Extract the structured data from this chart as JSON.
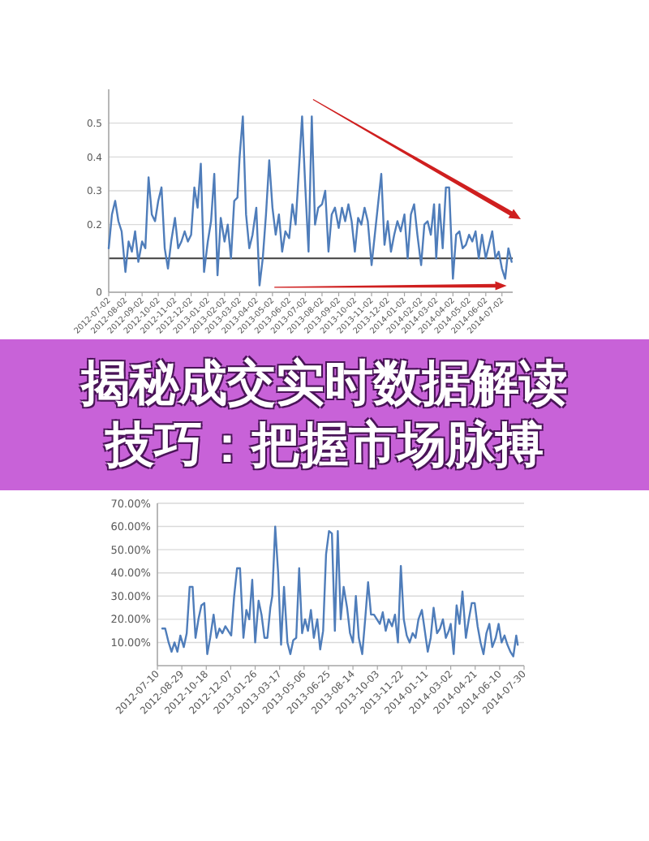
{
  "chart_data": [
    {
      "type": "line",
      "color": "#4f7dba",
      "x": [
        "2012-07-02",
        "2012-07-08",
        "2012-07-14",
        "2012-07-20",
        "2012-07-26",
        "2012-08-02",
        "2012-08-08",
        "2012-08-14",
        "2012-08-20",
        "2012-08-26",
        "2012-09-02",
        "2012-09-08",
        "2012-09-14",
        "2012-09-20",
        "2012-09-26",
        "2012-10-02",
        "2012-10-08",
        "2012-10-14",
        "2012-10-20",
        "2012-10-26",
        "2012-11-02",
        "2012-11-08",
        "2012-11-14",
        "2012-11-20",
        "2012-11-26",
        "2012-12-02",
        "2012-12-08",
        "2012-12-14",
        "2012-12-20",
        "2012-12-26",
        "2013-01-02",
        "2013-01-08",
        "2013-01-14",
        "2013-01-20",
        "2013-01-26",
        "2013-02-02",
        "2013-02-08",
        "2013-02-14",
        "2013-02-20",
        "2013-02-26",
        "2013-03-02",
        "2013-03-08",
        "2013-03-14",
        "2013-03-20",
        "2013-03-26",
        "2013-04-02",
        "2013-04-08",
        "2013-04-14",
        "2013-04-20",
        "2013-04-26",
        "2013-05-02",
        "2013-05-08",
        "2013-05-14",
        "2013-05-20",
        "2013-05-26",
        "2013-06-02",
        "2013-06-08",
        "2013-06-14",
        "2013-06-20",
        "2013-06-26",
        "2013-07-02",
        "2013-07-08",
        "2013-07-14",
        "2013-07-20",
        "2013-07-26",
        "2013-08-02",
        "2013-08-08",
        "2013-08-14",
        "2013-08-20",
        "2013-08-26",
        "2013-09-02",
        "2013-09-08",
        "2013-09-14",
        "2013-09-20",
        "2013-09-26",
        "2013-10-02",
        "2013-10-08",
        "2013-10-14",
        "2013-10-20",
        "2013-10-26",
        "2013-11-02",
        "2013-11-08",
        "2013-11-14",
        "2013-11-20",
        "2013-11-26",
        "2013-12-02",
        "2013-12-08",
        "2013-12-14",
        "2013-12-20",
        "2013-12-26",
        "2014-01-02",
        "2014-01-08",
        "2014-01-14",
        "2014-01-20",
        "2014-01-26",
        "2014-02-02",
        "2014-02-08",
        "2014-02-14",
        "2014-02-20",
        "2014-02-26",
        "2014-03-02",
        "2014-03-08",
        "2014-03-14",
        "2014-03-20",
        "2014-03-26",
        "2014-04-02",
        "2014-04-08",
        "2014-04-14",
        "2014-04-20",
        "2014-04-26",
        "2014-05-02",
        "2014-05-08",
        "2014-05-14",
        "2014-05-20",
        "2014-05-26",
        "2014-06-02",
        "2014-06-08",
        "2014-06-14",
        "2014-06-20",
        "2014-06-26",
        "2014-07-02",
        "2014-07-08",
        "2014-07-14",
        "2014-07-20"
      ],
      "values": [
        0.13,
        0.23,
        0.27,
        0.21,
        0.18,
        0.06,
        0.15,
        0.12,
        0.18,
        0.09,
        0.15,
        0.13,
        0.34,
        0.23,
        0.21,
        0.27,
        0.31,
        0.13,
        0.07,
        0.15,
        0.22,
        0.13,
        0.15,
        0.18,
        0.15,
        0.17,
        0.31,
        0.25,
        0.38,
        0.06,
        0.15,
        0.21,
        0.35,
        0.05,
        0.22,
        0.15,
        0.2,
        0.1,
        0.27,
        0.28,
        0.4,
        0.52,
        0.23,
        0.13,
        0.17,
        0.25,
        0.02,
        0.1,
        0.23,
        0.39,
        0.25,
        0.17,
        0.23,
        0.12,
        0.18,
        0.16,
        0.26,
        0.2,
        0.36,
        0.52,
        0.31,
        0.12,
        0.52,
        0.2,
        0.25,
        0.26,
        0.3,
        0.12,
        0.23,
        0.25,
        0.19,
        0.25,
        0.21,
        0.26,
        0.21,
        0.12,
        0.22,
        0.2,
        0.25,
        0.21,
        0.08,
        0.17,
        0.26,
        0.35,
        0.14,
        0.21,
        0.12,
        0.17,
        0.21,
        0.18,
        0.23,
        0.1,
        0.23,
        0.26,
        0.17,
        0.08,
        0.2,
        0.21,
        0.17,
        0.26,
        0.1,
        0.26,
        0.13,
        0.31,
        0.31,
        0.04,
        0.17,
        0.18,
        0.13,
        0.14,
        0.17,
        0.15,
        0.18,
        0.1,
        0.17,
        0.1,
        0.14,
        0.18,
        0.1,
        0.12,
        0.07,
        0.04,
        0.13,
        0.09
      ],
      "xlim": [
        "2012-07-02",
        "2014-07-22"
      ],
      "ylim": [
        0,
        0.6
      ],
      "xticks": [
        "2012-07-02",
        "2012-08-02",
        "2012-09-02",
        "2012-10-02",
        "2012-11-02",
        "2012-12-02",
        "2013-01-02",
        "2013-02-02",
        "2013-03-02",
        "2013-04-02",
        "2013-05-02",
        "2013-06-02",
        "2013-07-02",
        "2013-08-02",
        "2013-09-02",
        "2013-10-02",
        "2013-11-02",
        "2013-12-02",
        "2014-01-02",
        "2014-02-02",
        "2014-03-02",
        "2014-04-02",
        "2014-05-02",
        "2014-06-02",
        "2014-07-02"
      ],
      "yticks": [
        0,
        {
          "value": 0.1,
          "label": null
        },
        0.2,
        0.3,
        0.4,
        0.5
      ],
      "grid": "y",
      "ref_lines": [
        {
          "axis": "y",
          "value": 0.1,
          "color": "#404040"
        }
      ]
    },
    {
      "type": "other",
      "title": "揭秘成交实时数据解读技巧：把握市场脉搏"
    },
    {
      "type": "line",
      "color": "#4f7dba",
      "x": [
        "2012-07-20",
        "2012-07-26",
        "2012-08-02",
        "2012-08-08",
        "2012-08-14",
        "2012-08-20",
        "2012-08-26",
        "2012-09-02",
        "2012-09-08",
        "2012-09-14",
        "2012-09-20",
        "2012-09-26",
        "2012-10-02",
        "2012-10-08",
        "2012-10-14",
        "2012-10-20",
        "2012-10-26",
        "2012-11-02",
        "2012-11-08",
        "2012-11-14",
        "2012-11-20",
        "2012-11-26",
        "2012-12-02",
        "2012-12-08",
        "2012-12-14",
        "2012-12-20",
        "2012-12-26",
        "2013-01-02",
        "2013-01-08",
        "2013-01-14",
        "2013-01-20",
        "2013-01-26",
        "2013-02-02",
        "2013-02-08",
        "2013-02-14",
        "2013-02-20",
        "2013-02-26",
        "2013-03-02",
        "2013-03-08",
        "2013-03-14",
        "2013-03-20",
        "2013-03-26",
        "2013-04-02",
        "2013-04-08",
        "2013-04-14",
        "2013-04-20",
        "2013-04-26",
        "2013-05-02",
        "2013-05-08",
        "2013-05-14",
        "2013-05-20",
        "2013-05-26",
        "2013-06-02",
        "2013-06-08",
        "2013-06-14",
        "2013-06-20",
        "2013-06-26",
        "2013-07-02",
        "2013-07-08",
        "2013-07-14",
        "2013-07-20",
        "2013-07-26",
        "2013-08-02",
        "2013-08-08",
        "2013-08-14",
        "2013-08-20",
        "2013-08-26",
        "2013-09-02",
        "2013-09-08",
        "2013-09-14",
        "2013-09-20",
        "2013-09-26",
        "2013-10-02",
        "2013-10-08",
        "2013-10-14",
        "2013-10-20",
        "2013-10-26",
        "2013-11-02",
        "2013-11-08",
        "2013-11-14",
        "2013-11-20",
        "2013-11-26",
        "2013-12-02",
        "2013-12-08",
        "2013-12-14",
        "2013-12-20",
        "2013-12-26",
        "2014-01-02",
        "2014-01-08",
        "2014-01-14",
        "2014-01-20",
        "2014-01-26",
        "2014-02-02",
        "2014-02-08",
        "2014-02-14",
        "2014-02-20",
        "2014-02-26",
        "2014-03-02",
        "2014-03-08",
        "2014-03-14",
        "2014-03-20",
        "2014-03-26",
        "2014-04-02",
        "2014-04-08",
        "2014-04-14",
        "2014-04-20",
        "2014-04-26",
        "2014-05-02",
        "2014-05-08",
        "2014-05-14",
        "2014-05-20",
        "2014-05-26",
        "2014-06-02",
        "2014-06-08",
        "2014-06-14",
        "2014-06-20",
        "2014-06-26",
        "2014-07-02",
        "2014-07-08",
        "2014-07-14",
        "2014-07-17"
      ],
      "values": [
        16,
        16,
        10,
        6,
        10,
        6,
        13,
        8,
        14,
        34,
        34,
        12,
        20,
        26,
        27,
        5,
        12,
        22,
        12,
        16,
        14,
        17,
        15,
        13,
        30,
        42,
        42,
        12,
        24,
        20,
        37,
        10,
        28,
        22,
        12,
        12,
        25,
        30,
        60,
        40,
        9,
        34,
        10,
        5,
        11,
        12,
        42,
        14,
        20,
        15,
        24,
        12,
        20,
        7,
        15,
        48,
        58,
        57,
        15,
        58,
        20,
        34,
        25,
        14,
        10,
        30,
        12,
        5,
        20,
        36,
        22,
        22,
        20,
        18,
        23,
        15,
        20,
        17,
        22,
        10,
        43,
        20,
        13,
        10,
        14,
        12,
        20,
        24,
        15,
        6,
        12,
        25,
        14,
        16,
        20,
        12,
        15,
        18,
        5,
        26,
        18,
        32,
        12,
        20,
        27,
        27,
        17,
        10,
        5,
        14,
        18,
        8,
        12,
        18,
        10,
        13,
        9,
        6,
        4,
        13,
        9
      ],
      "xlim": [
        "2012-07-10",
        "2014-07-30"
      ],
      "ylim": [
        0,
        70
      ],
      "xticks": [
        "2012-07-10",
        "2012-08-29",
        "2012-10-18",
        "2012-12-07",
        "2013-01-26",
        "2013-03-17",
        "2013-05-06",
        "2013-06-25",
        "2013-08-14",
        "2013-10-03",
        "2013-11-22",
        "2014-01-11",
        "2014-03-02",
        "2014-04-21",
        "2014-06-10",
        "2014-07-30"
      ],
      "yticks": [
        {
          "value": 10,
          "label": "10.00%"
        },
        {
          "value": 20,
          "label": "20.00%"
        },
        {
          "value": 30,
          "label": "30.00%"
        },
        {
          "value": 40,
          "label": "40.00%"
        },
        {
          "value": 50,
          "label": "50.00%"
        },
        {
          "value": 60,
          "label": "60.00%"
        },
        {
          "value": 70,
          "label": "70.00%"
        }
      ],
      "grid": "y"
    }
  ]
}
